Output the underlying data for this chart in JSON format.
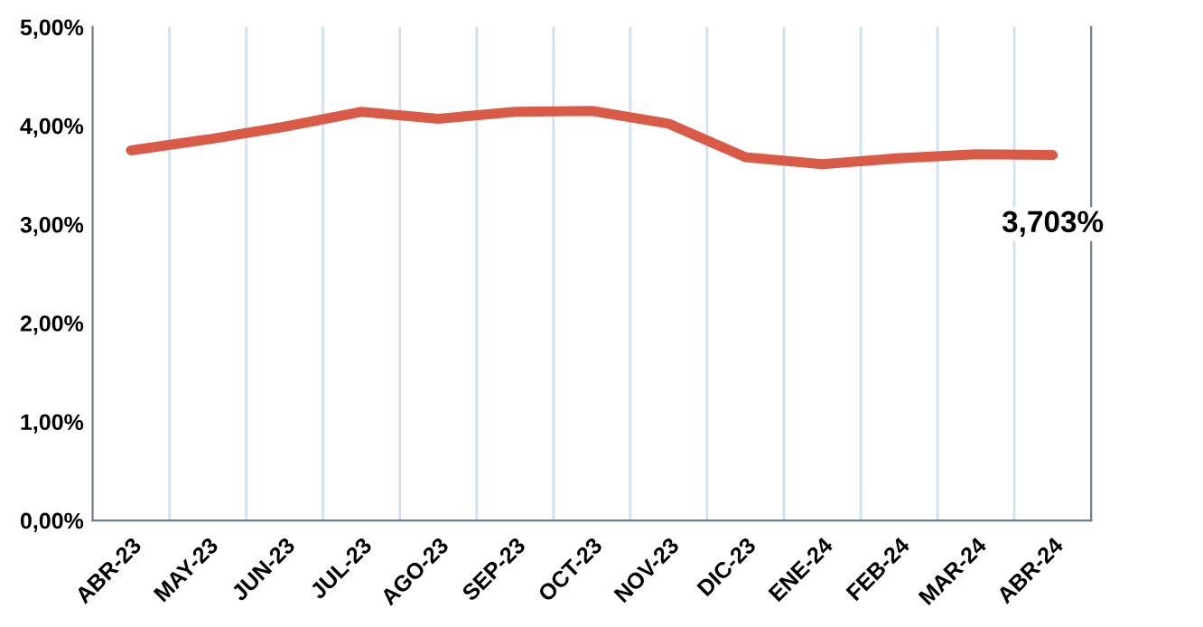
{
  "chart_data": {
    "type": "line",
    "categories": [
      "ABR-23",
      "MAY-23",
      "JUN-23",
      "JUL-23",
      "AGO-23",
      "SEP-23",
      "OCT-23",
      "NOV-23",
      "DIC-23",
      "ENE-24",
      "FEB-24",
      "MAR-24",
      "ABR-24"
    ],
    "series": [
      {
        "color": "#d95a47",
        "values": [
          3.75,
          3.86,
          3.99,
          4.14,
          4.07,
          4.14,
          4.15,
          4.02,
          3.68,
          3.61,
          3.67,
          3.71,
          3.703
        ]
      }
    ],
    "ylim": [
      0,
      5
    ],
    "yticks": [
      {
        "value": 0,
        "label": "0,00%"
      },
      {
        "value": 1,
        "label": "1,00%"
      },
      {
        "value": 2,
        "label": "2,00%"
      },
      {
        "value": 3,
        "label": "3,00%"
      },
      {
        "value": 4,
        "label": "4,00%"
      },
      {
        "value": 5,
        "label": "5,00%"
      }
    ],
    "grid": "x",
    "marker": "none",
    "line_style": "solid",
    "annotations": [
      {
        "text": "3,703%",
        "x": "ABR-24",
        "y": 3.703
      }
    ]
  }
}
